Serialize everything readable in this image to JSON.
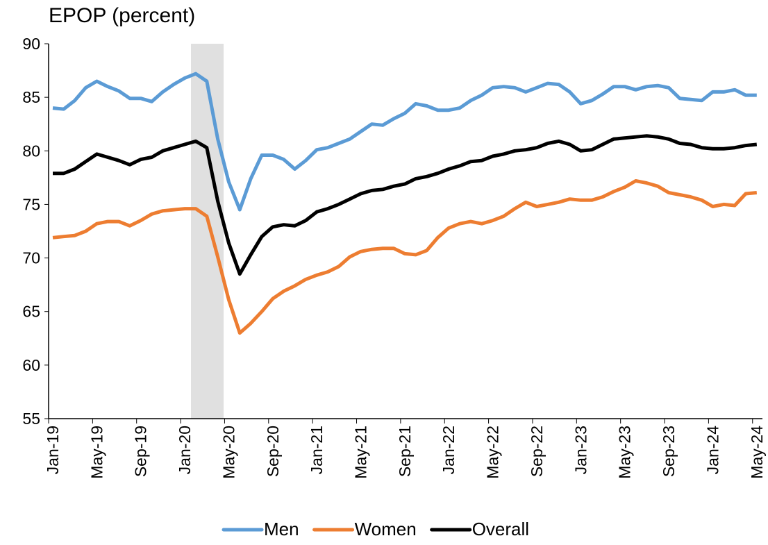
{
  "chart_data": {
    "type": "line",
    "title": "EPOP (percent)",
    "categories": [
      "Jan-19",
      null,
      null,
      null,
      "May-19",
      null,
      null,
      null,
      "Sep-19",
      null,
      null,
      null,
      "Jan-20",
      null,
      null,
      null,
      "May-20",
      null,
      null,
      null,
      "Sep-20",
      null,
      null,
      null,
      "Jan-21",
      null,
      null,
      null,
      "May-21",
      null,
      null,
      null,
      "Sep-21",
      null,
      null,
      null,
      "Jan-22",
      null,
      null,
      null,
      "May-22",
      null,
      null,
      null,
      "Sep-22",
      null,
      null,
      null,
      "Jan-23",
      null,
      null,
      null,
      "May-23",
      null,
      null,
      null,
      "Sep-23",
      null,
      null,
      null,
      "Jan-24",
      null,
      null,
      null,
      "May-24"
    ],
    "series": [
      {
        "name": "Men",
        "color": "#5b9bd5",
        "values": [
          84.0,
          83.9,
          84.7,
          85.9,
          86.5,
          86.0,
          85.6,
          84.9,
          84.9,
          84.6,
          85.5,
          86.2,
          86.8,
          87.2,
          86.5,
          81.1,
          77.1,
          74.5,
          77.4,
          79.6,
          79.6,
          79.2,
          78.3,
          79.1,
          80.1,
          80.3,
          80.7,
          81.1,
          81.8,
          82.5,
          82.4,
          83.0,
          83.5,
          84.4,
          84.2,
          83.8,
          83.8,
          84.0,
          84.7,
          85.2,
          85.9,
          86.0,
          85.9,
          85.5,
          85.9,
          86.3,
          86.2,
          85.5,
          84.4,
          84.7,
          85.3,
          86.0,
          86.0,
          85.7,
          86.0,
          86.1,
          85.9,
          84.9,
          84.8,
          84.7,
          85.5,
          85.5,
          85.7,
          85.2,
          85.2
        ]
      },
      {
        "name": "Women",
        "color": "#ed7d31",
        "values": [
          71.9,
          72.0,
          72.1,
          72.5,
          73.2,
          73.4,
          73.4,
          73.0,
          73.5,
          74.1,
          74.4,
          74.5,
          74.6,
          74.6,
          73.9,
          70.1,
          66.1,
          63.0,
          63.9,
          65.0,
          66.2,
          66.9,
          67.4,
          68.0,
          68.4,
          68.7,
          69.2,
          70.1,
          70.6,
          70.8,
          70.9,
          70.9,
          70.4,
          70.3,
          70.7,
          71.9,
          72.8,
          73.2,
          73.4,
          73.2,
          73.5,
          73.9,
          74.6,
          75.2,
          74.8,
          75.0,
          75.2,
          75.5,
          75.4,
          75.4,
          75.7,
          76.2,
          76.6,
          77.2,
          77.0,
          76.7,
          76.1,
          75.9,
          75.7,
          75.4,
          74.8,
          75.0,
          74.9,
          76.0,
          76.1
        ]
      },
      {
        "name": "Overall",
        "color": "#000000",
        "values": [
          77.9,
          77.9,
          78.3,
          79.0,
          79.7,
          79.4,
          79.1,
          78.7,
          79.2,
          79.4,
          80.0,
          80.3,
          80.6,
          80.9,
          80.3,
          75.3,
          71.4,
          68.5,
          70.3,
          72.0,
          72.9,
          73.1,
          73.0,
          73.5,
          74.3,
          74.6,
          75.0,
          75.5,
          76.0,
          76.3,
          76.4,
          76.7,
          76.9,
          77.4,
          77.6,
          77.9,
          78.3,
          78.6,
          79.0,
          79.1,
          79.5,
          79.7,
          80.0,
          80.1,
          80.3,
          80.7,
          80.9,
          80.6,
          80.0,
          80.1,
          80.6,
          81.1,
          81.2,
          81.3,
          81.4,
          81.3,
          81.1,
          80.7,
          80.6,
          80.3,
          80.2,
          80.2,
          80.3,
          80.5,
          80.6
        ]
      }
    ],
    "ylim": [
      55,
      90
    ],
    "yticks": [
      55,
      60,
      65,
      70,
      75,
      80,
      85,
      90
    ],
    "grid": false
  }
}
